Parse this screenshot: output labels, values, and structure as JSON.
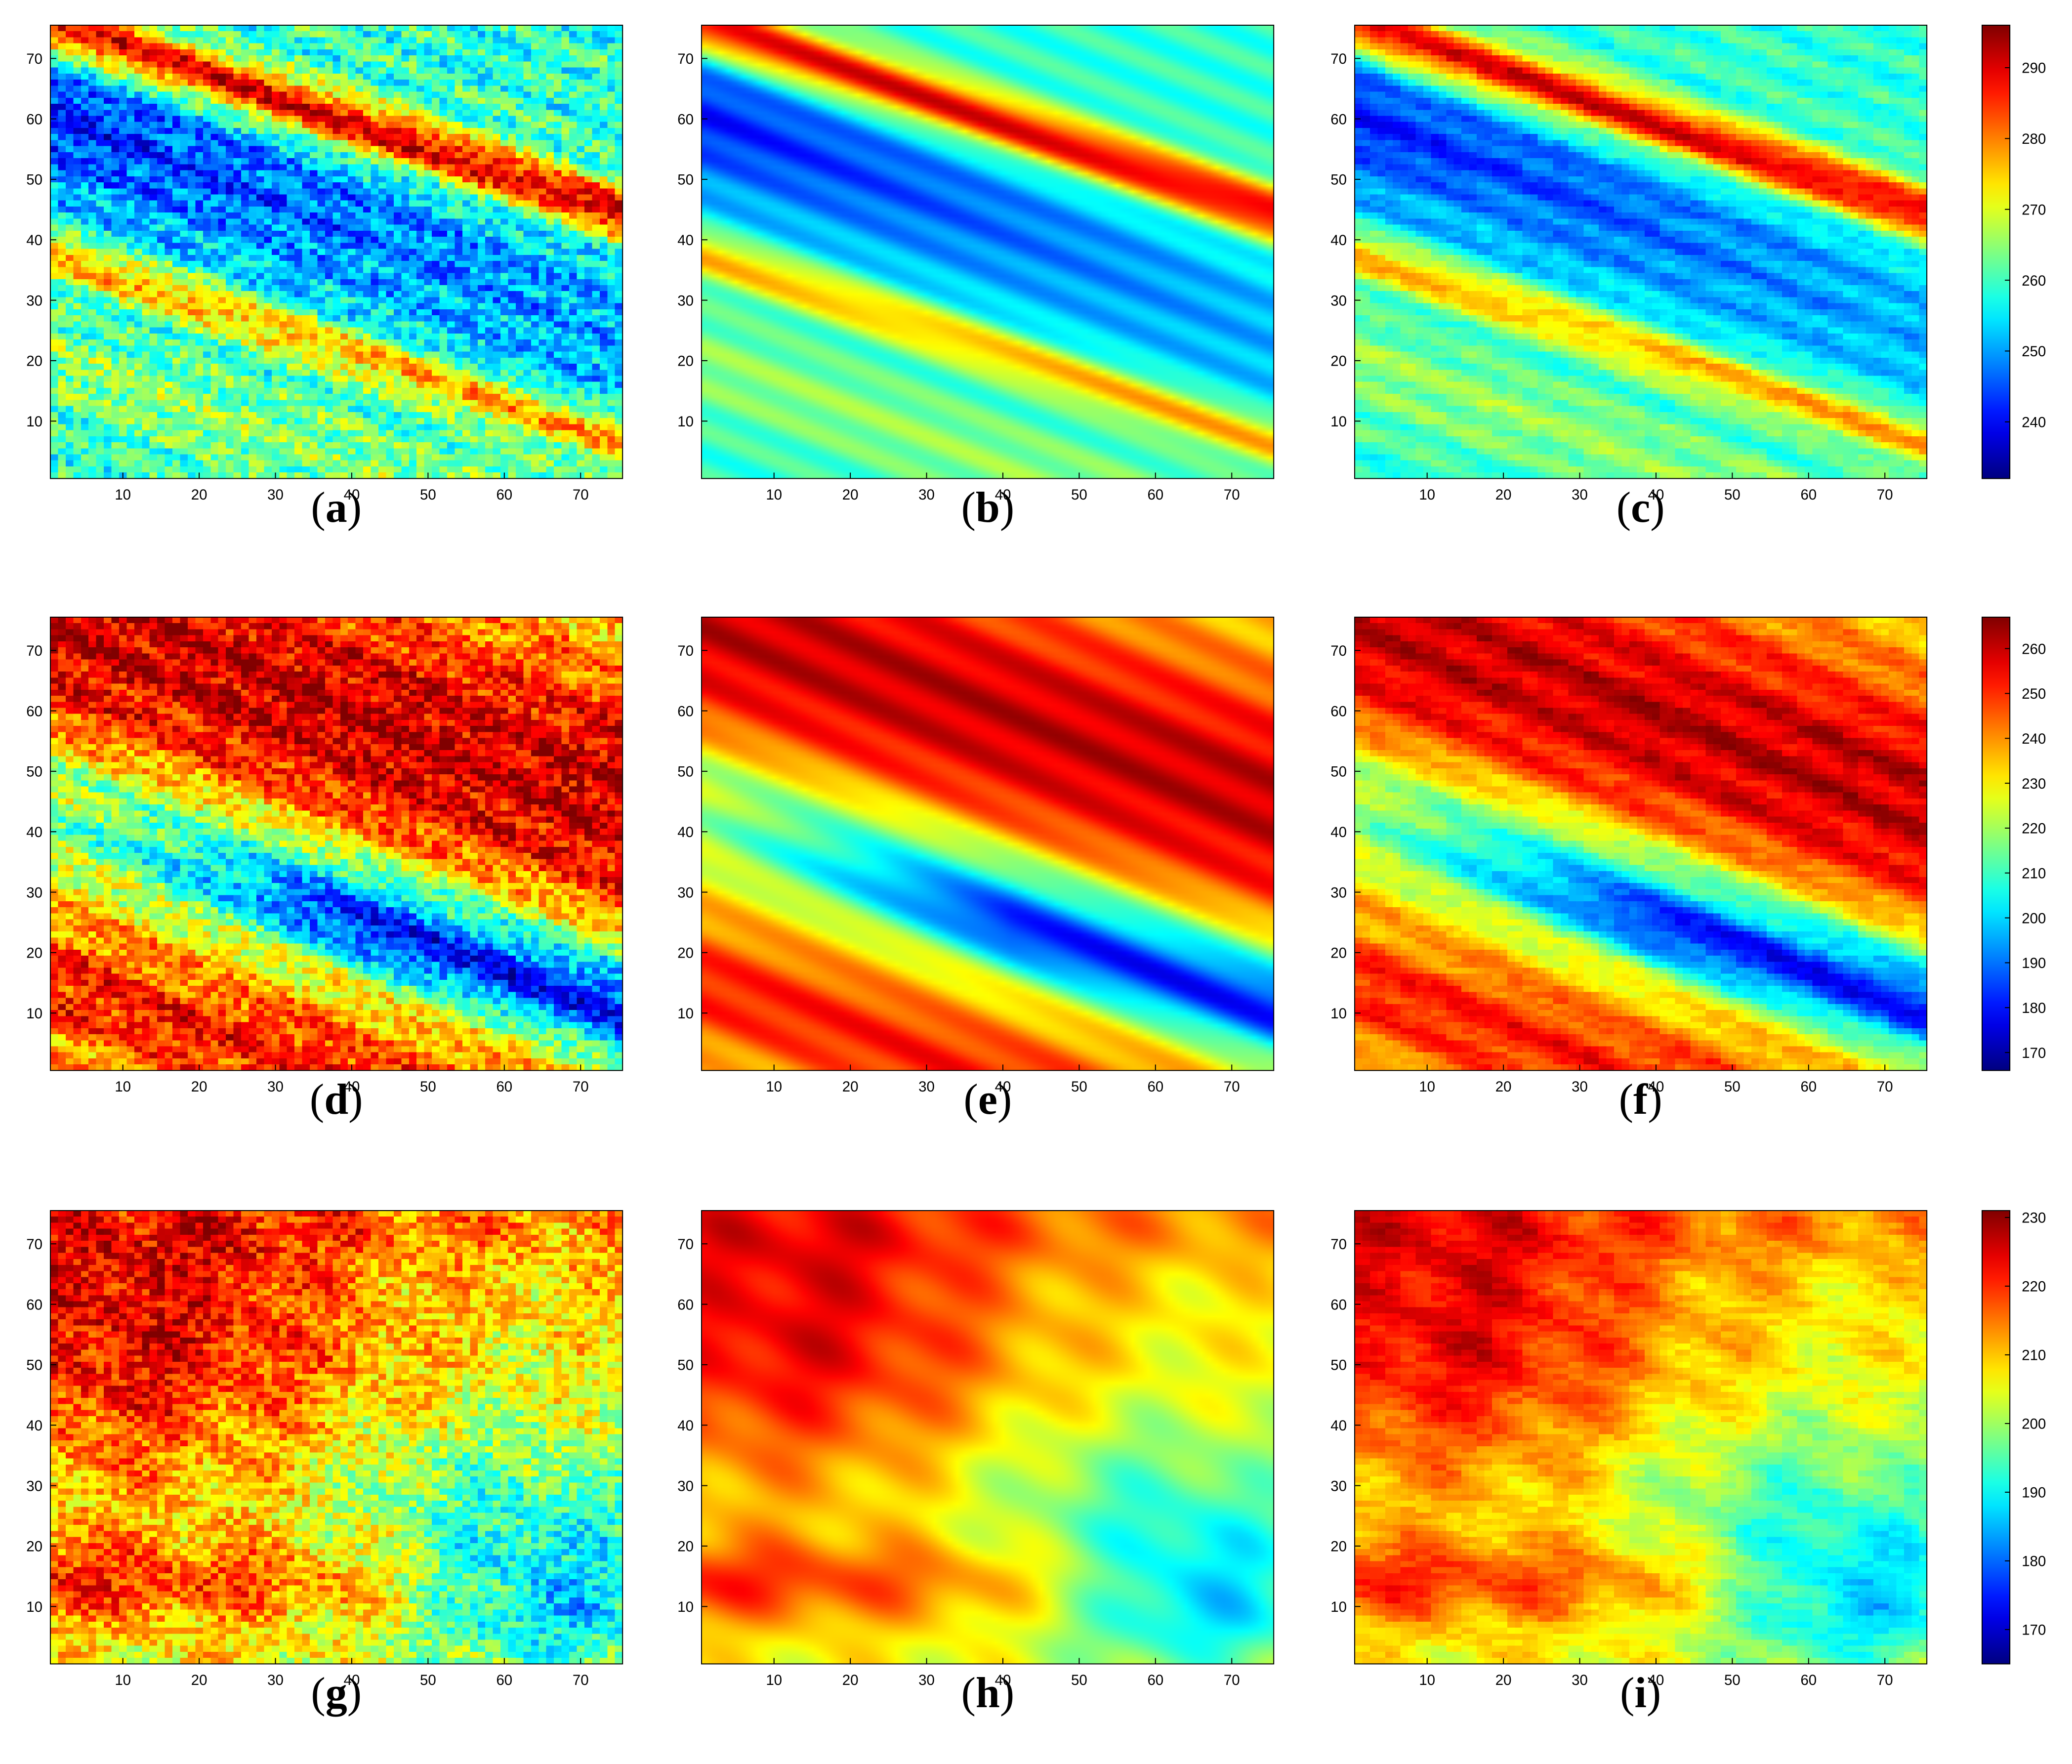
{
  "chart_data": [
    {
      "type": "heatmap",
      "panel": "a",
      "x_range": [
        1,
        75
      ],
      "y_range": [
        1,
        75
      ],
      "x_ticks": [
        10,
        20,
        30,
        40,
        50,
        60,
        70
      ],
      "y_ticks": [
        10,
        20,
        30,
        40,
        50,
        60,
        70
      ],
      "colormap": "jet",
      "clim": [
        232,
        296
      ],
      "field": "row1",
      "smoothing": "noisy"
    },
    {
      "type": "heatmap",
      "panel": "b",
      "x_range": [
        1,
        75
      ],
      "y_range": [
        1,
        75
      ],
      "x_ticks": [
        10,
        20,
        30,
        40,
        50,
        60,
        70
      ],
      "y_ticks": [
        10,
        20,
        30,
        40,
        50,
        60,
        70
      ],
      "colormap": "jet",
      "clim": [
        232,
        296
      ],
      "field": "row1",
      "smoothing": "smooth"
    },
    {
      "type": "heatmap",
      "panel": "c",
      "x_range": [
        1,
        75
      ],
      "y_range": [
        1,
        75
      ],
      "x_ticks": [
        10,
        20,
        30,
        40,
        50,
        60,
        70
      ],
      "y_ticks": [
        10,
        20,
        30,
        40,
        50,
        60,
        70
      ],
      "colormap": "jet",
      "clim": [
        232,
        296
      ],
      "field": "row1",
      "smoothing": "medium"
    },
    {
      "type": "heatmap",
      "panel": "d",
      "x_range": [
        1,
        75
      ],
      "y_range": [
        1,
        75
      ],
      "x_ticks": [
        10,
        20,
        30,
        40,
        50,
        60,
        70
      ],
      "y_ticks": [
        10,
        20,
        30,
        40,
        50,
        60,
        70
      ],
      "colormap": "jet",
      "clim": [
        166,
        267
      ],
      "field": "row2",
      "smoothing": "noisy"
    },
    {
      "type": "heatmap",
      "panel": "e",
      "x_range": [
        1,
        75
      ],
      "y_range": [
        1,
        75
      ],
      "x_ticks": [
        10,
        20,
        30,
        40,
        50,
        60,
        70
      ],
      "y_ticks": [
        10,
        20,
        30,
        40,
        50,
        60,
        70
      ],
      "colormap": "jet",
      "clim": [
        166,
        267
      ],
      "field": "row2",
      "smoothing": "smooth"
    },
    {
      "type": "heatmap",
      "panel": "f",
      "x_range": [
        1,
        75
      ],
      "y_range": [
        1,
        75
      ],
      "x_ticks": [
        10,
        20,
        30,
        40,
        50,
        60,
        70
      ],
      "y_ticks": [
        10,
        20,
        30,
        40,
        50,
        60,
        70
      ],
      "colormap": "jet",
      "clim": [
        166,
        267
      ],
      "field": "row2",
      "smoothing": "medium"
    },
    {
      "type": "heatmap",
      "panel": "g",
      "x_range": [
        1,
        75
      ],
      "y_range": [
        1,
        75
      ],
      "x_ticks": [
        10,
        20,
        30,
        40,
        50,
        60,
        70
      ],
      "y_ticks": [
        10,
        20,
        30,
        40,
        50,
        60,
        70
      ],
      "colormap": "jet",
      "clim": [
        165,
        231
      ],
      "field": "row3",
      "smoothing": "noisy"
    },
    {
      "type": "heatmap",
      "panel": "h",
      "x_range": [
        1,
        75
      ],
      "y_range": [
        1,
        75
      ],
      "x_ticks": [
        10,
        20,
        30,
        40,
        50,
        60,
        70
      ],
      "y_ticks": [
        10,
        20,
        30,
        40,
        50,
        60,
        70
      ],
      "colormap": "jet",
      "clim": [
        165,
        231
      ],
      "field": "row3",
      "smoothing": "smooth"
    },
    {
      "type": "heatmap",
      "panel": "i",
      "x_range": [
        1,
        75
      ],
      "y_range": [
        1,
        75
      ],
      "x_ticks": [
        10,
        20,
        30,
        40,
        50,
        60,
        70
      ],
      "y_ticks": [
        10,
        20,
        30,
        40,
        50,
        60,
        70
      ],
      "colormap": "jet",
      "clim": [
        165,
        231
      ],
      "field": "row3",
      "smoothing": "medium"
    }
  ],
  "colorbars": [
    {
      "row": 1,
      "clim": [
        232,
        296
      ],
      "ticks": [
        240,
        250,
        260,
        270,
        280,
        290
      ]
    },
    {
      "row": 2,
      "clim": [
        166,
        267
      ],
      "ticks": [
        170,
        180,
        190,
        200,
        210,
        220,
        230,
        240,
        250,
        260
      ]
    },
    {
      "row": 3,
      "clim": [
        165,
        231
      ],
      "ticks": [
        170,
        180,
        190,
        200,
        210,
        220,
        230
      ]
    }
  ],
  "labels": {
    "a": {
      "open": "(",
      "letter": "a",
      "close": ")"
    },
    "b": {
      "open": "(",
      "letter": "b",
      "close": ")"
    },
    "c": {
      "open": "(",
      "letter": "c",
      "close": ")"
    },
    "d": {
      "open": "(",
      "letter": "d",
      "close": ")"
    },
    "e": {
      "open": "(",
      "letter": "e",
      "close": ")"
    },
    "f": {
      "open": "(",
      "letter": "f",
      "close": ")"
    },
    "g": {
      "open": "(",
      "letter": "g",
      "close": ")"
    },
    "h": {
      "open": "(",
      "letter": "h",
      "close": ")"
    },
    "i": {
      "open": "(",
      "letter": "i",
      "close": ")"
    }
  },
  "colors": {
    "axis": "#000000",
    "background": "#ffffff"
  }
}
